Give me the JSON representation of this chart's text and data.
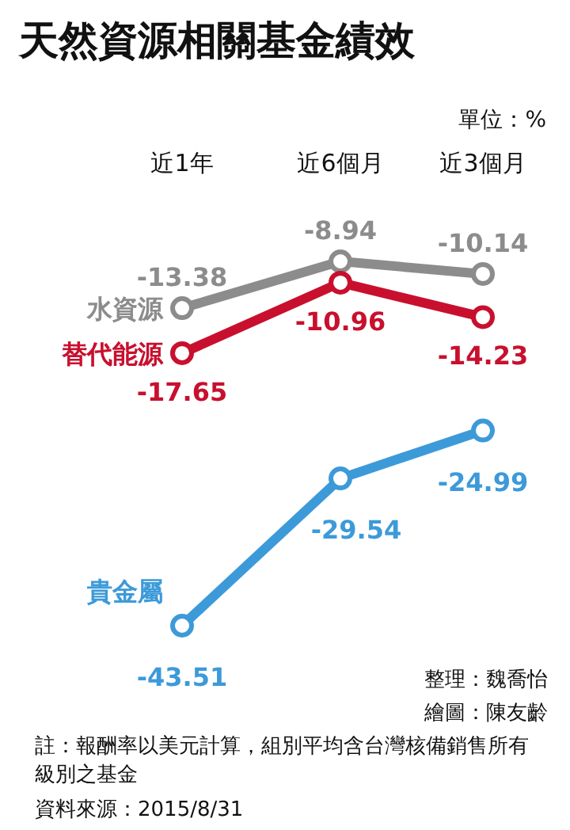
{
  "chart_data": {
    "type": "line",
    "title": "天然資源相關基金績效",
    "subtitle": "單位：%",
    "categories": [
      "近1年",
      "近6個月",
      "近3個月"
    ],
    "series": [
      {
        "name": "水資源",
        "color": "#8c8c8c",
        "values": [
          -13.38,
          -8.94,
          -10.14
        ]
      },
      {
        "name": "替代能源",
        "color": "#c8102e",
        "values": [
          -17.65,
          -10.96,
          -14.23
        ]
      },
      {
        "name": "貴金屬",
        "color": "#3d9ad9",
        "values": [
          -43.51,
          -29.54,
          -24.99
        ]
      }
    ],
    "data_labels": true,
    "marker": "circle",
    "line_style": "solid",
    "annotations": [
      "整理：魏喬怡",
      "繪圖：陳友齡",
      "註：報酬率以美元計算，組別平均含台灣核備銷售所有級別之基金",
      "資料來源：2015/8/31"
    ]
  }
}
